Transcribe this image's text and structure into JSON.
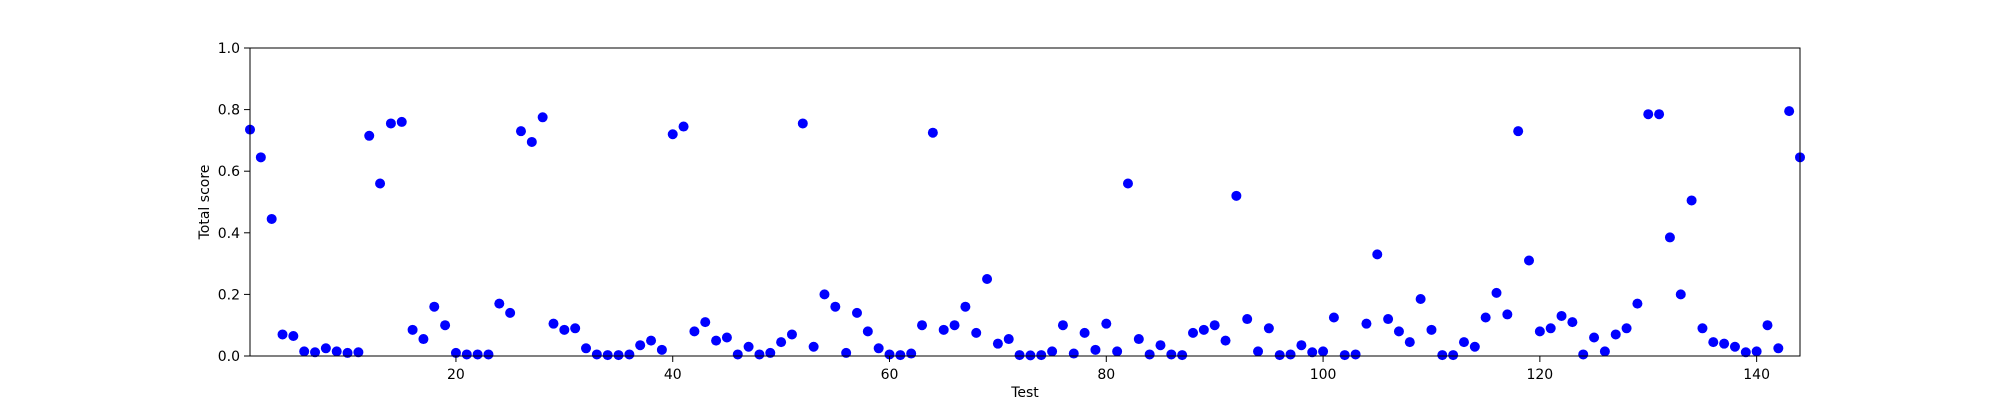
{
  "chart_data": {
    "type": "scatter",
    "title": "",
    "xlabel": "Test",
    "ylabel": "Total score",
    "xlim": [
      1,
      144
    ],
    "ylim": [
      0.0,
      1.0
    ],
    "xticks": [
      20,
      40,
      60,
      80,
      100,
      120,
      140
    ],
    "yticks": [
      0.0,
      0.2,
      0.4,
      0.6,
      0.8,
      1.0
    ],
    "ytick_labels": [
      "0.0",
      "0.2",
      "0.4",
      "0.6",
      "0.8",
      "1.0"
    ],
    "grid": false,
    "marker_color": "#0000ff",
    "x": [
      1,
      2,
      3,
      4,
      5,
      6,
      7,
      8,
      9,
      10,
      11,
      12,
      13,
      14,
      15,
      16,
      17,
      18,
      19,
      20,
      21,
      22,
      23,
      24,
      25,
      26,
      27,
      28,
      29,
      30,
      31,
      32,
      33,
      34,
      35,
      36,
      37,
      38,
      39,
      40,
      41,
      42,
      43,
      44,
      45,
      46,
      47,
      48,
      49,
      50,
      51,
      52,
      53,
      54,
      55,
      56,
      57,
      58,
      59,
      60,
      61,
      62,
      63,
      64,
      65,
      66,
      67,
      68,
      69,
      70,
      71,
      72,
      73,
      74,
      75,
      76,
      77,
      78,
      79,
      80,
      81,
      82,
      83,
      84,
      85,
      86,
      87,
      88,
      89,
      90,
      91,
      92,
      93,
      94,
      95,
      96,
      97,
      98,
      99,
      100,
      101,
      102,
      103,
      104,
      105,
      106,
      107,
      108,
      109,
      110,
      111,
      112,
      113,
      114,
      115,
      116,
      117,
      118,
      119,
      120,
      121,
      122,
      123,
      124,
      125,
      126,
      127,
      128,
      129,
      130,
      131,
      132,
      133,
      134,
      135,
      136,
      137,
      138,
      139,
      140,
      141,
      142,
      143,
      144
    ],
    "y": [
      0.735,
      0.645,
      0.445,
      0.07,
      0.065,
      0.015,
      0.012,
      0.025,
      0.015,
      0.01,
      0.012,
      0.715,
      0.56,
      0.755,
      0.76,
      0.085,
      0.055,
      0.16,
      0.1,
      0.01,
      0.005,
      0.005,
      0.005,
      0.17,
      0.14,
      0.73,
      0.695,
      0.775,
      0.105,
      0.085,
      0.09,
      0.025,
      0.005,
      0.003,
      0.003,
      0.005,
      0.035,
      0.05,
      0.02,
      0.72,
      0.745,
      0.08,
      0.11,
      0.05,
      0.06,
      0.005,
      0.03,
      0.005,
      0.01,
      0.045,
      0.07,
      0.755,
      0.03,
      0.2,
      0.16,
      0.01,
      0.14,
      0.08,
      0.025,
      0.005,
      0.003,
      0.008,
      0.1,
      0.725,
      0.085,
      0.1,
      0.16,
      0.075,
      0.25,
      0.04,
      0.055,
      0.003,
      0.002,
      0.003,
      0.015,
      0.1,
      0.008,
      0.075,
      0.02,
      0.105,
      0.015,
      0.56,
      0.055,
      0.005,
      0.035,
      0.005,
      0.003,
      0.075,
      0.085,
      0.1,
      0.05,
      0.52,
      0.12,
      0.015,
      0.09,
      0.003,
      0.005,
      0.035,
      0.012,
      0.015,
      0.125,
      0.003,
      0.005,
      0.105,
      0.33,
      0.12,
      0.08,
      0.045,
      0.185,
      0.085,
      0.003,
      0.003,
      0.045,
      0.03,
      0.125,
      0.205,
      0.135,
      0.73,
      0.31,
      0.08,
      0.09,
      0.13,
      0.11,
      0.005,
      0.06,
      0.015,
      0.07,
      0.09,
      0.17,
      0.785,
      0.785,
      0.385,
      0.2,
      0.505,
      0.09,
      0.045,
      0.04,
      0.03,
      0.012,
      0.015,
      0.1,
      0.025,
      0.795,
      0.645
    ]
  }
}
